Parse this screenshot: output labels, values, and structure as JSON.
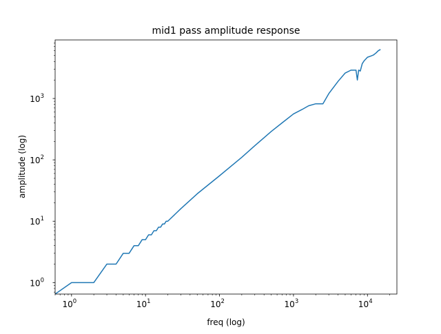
{
  "chart_data": {
    "type": "line",
    "title": "mid1 pass amplitude response",
    "xlabel": "freq (log)",
    "ylabel": "amplitude (log)",
    "xscale": "log",
    "yscale": "log",
    "xlim": [
      0.6,
      25000
    ],
    "ylim": [
      0.65,
      9000
    ],
    "grid": false,
    "legend": "none",
    "line_color": "#1f77b4",
    "x_ticks": [
      {
        "base": "10",
        "exp": "0",
        "value": 1
      },
      {
        "base": "10",
        "exp": "1",
        "value": 10
      },
      {
        "base": "10",
        "exp": "2",
        "value": 100
      },
      {
        "base": "10",
        "exp": "3",
        "value": 1000
      },
      {
        "base": "10",
        "exp": "4",
        "value": 10000
      }
    ],
    "y_ticks": [
      {
        "base": "10",
        "exp": "0",
        "value": 1
      },
      {
        "base": "10",
        "exp": "1",
        "value": 10
      },
      {
        "base": "10",
        "exp": "2",
        "value": 100
      },
      {
        "base": "10",
        "exp": "3",
        "value": 1000
      }
    ],
    "series": [
      {
        "x": [
          0.6,
          1,
          2,
          3,
          4,
          5,
          6,
          7,
          8,
          9,
          10,
          11,
          12,
          13,
          14,
          15,
          16,
          17,
          18,
          19,
          20,
          30,
          50,
          100,
          200,
          300,
          500,
          700,
          1000,
          1300,
          1600,
          2000,
          2500,
          3000,
          4000,
          5000,
          6000,
          7000,
          7300,
          7600,
          8000,
          8500,
          9000,
          10000,
          11000,
          12000,
          13000,
          14000,
          15000
        ],
        "y": [
          0.65,
          1,
          1,
          2,
          2,
          3,
          3,
          4,
          4,
          5,
          5,
          6,
          6,
          7,
          7,
          8,
          8,
          9,
          9,
          10,
          10,
          16,
          28,
          55,
          110,
          170,
          290,
          400,
          560,
          660,
          760,
          820,
          820,
          1200,
          1900,
          2600,
          2900,
          2900,
          2000,
          2900,
          2800,
          3700,
          4100,
          4700,
          4900,
          5100,
          5500,
          6000,
          6300
        ]
      }
    ]
  }
}
